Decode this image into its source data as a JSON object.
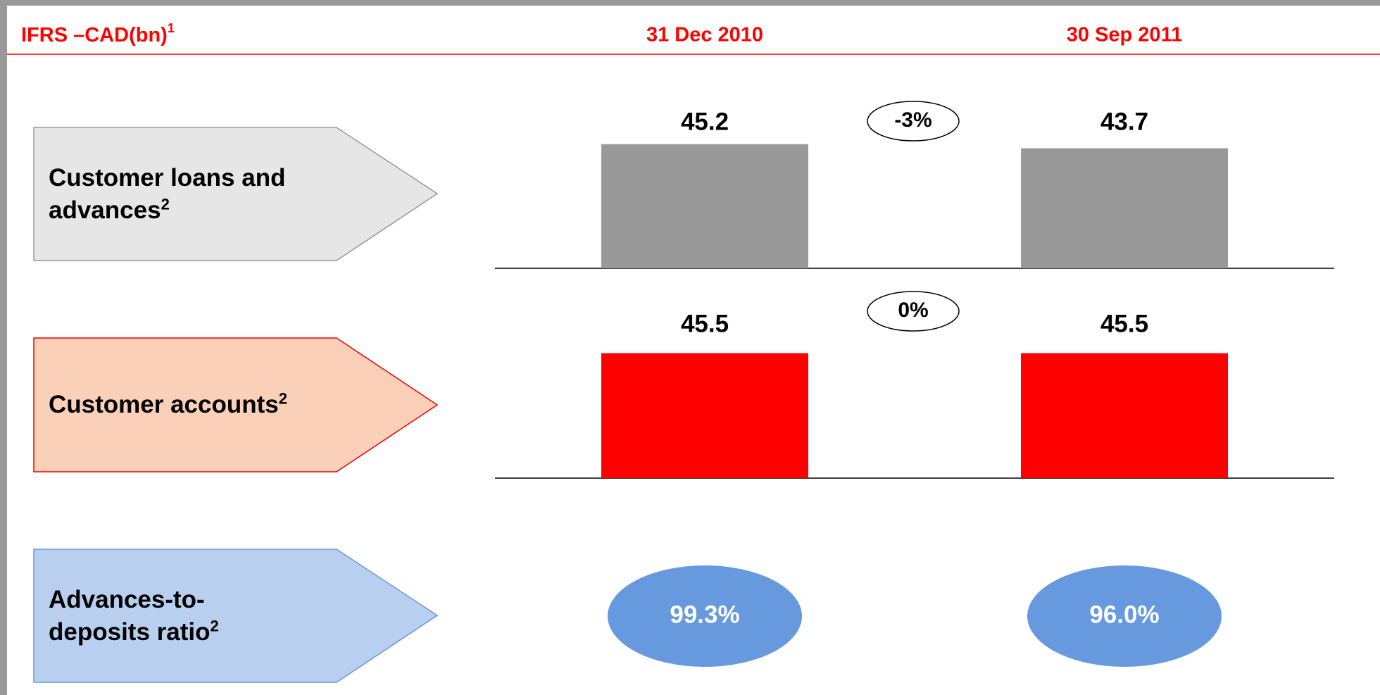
{
  "chart_data": {
    "type": "bar",
    "title": "IFRS –CAD(bn)",
    "title_note": "1",
    "categories": [
      "31 Dec 2010",
      "30 Sep 2011"
    ],
    "series": [
      {
        "name": "Customer loans and advances",
        "note": "2",
        "color": "#999999",
        "values": [
          45.2,
          43.7
        ],
        "change": "-3%"
      },
      {
        "name": "Customer accounts",
        "note": "2",
        "color": "#ff0000",
        "values": [
          45.5,
          45.5
        ],
        "change": "0%"
      }
    ],
    "ratio": {
      "name": "Advances-to-deposits ratio",
      "note": "2",
      "color": "#6699dd",
      "values": [
        99.3,
        96.0
      ],
      "value_labels": [
        "99.3%",
        "96.0%"
      ]
    }
  }
}
